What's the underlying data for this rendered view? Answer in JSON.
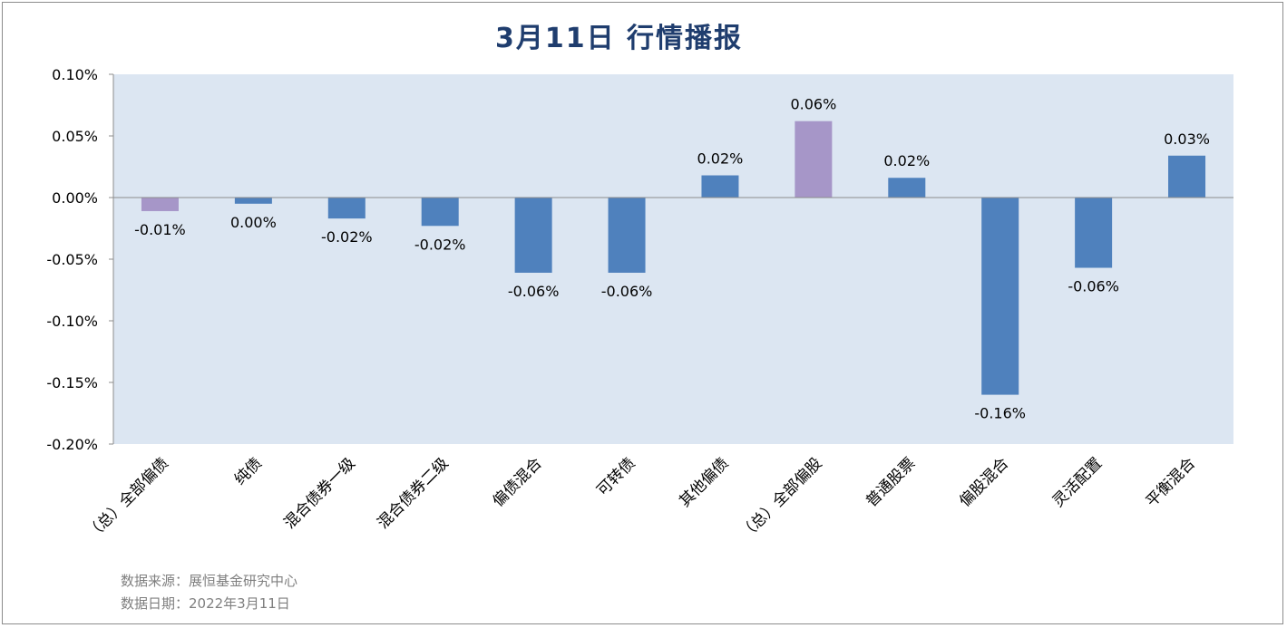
{
  "title": "3月11日  行情播报",
  "notes": {
    "source": "数据来源：展恒基金研究中心",
    "date": "数据日期：2022年3月11日"
  },
  "colors": {
    "plot_bg": "#dce6f2",
    "bar_default": "#4f81bd",
    "bar_total": "#a696c8",
    "title": "#1f3d6e"
  },
  "chart_data": {
    "type": "bar",
    "title": "3月11日  行情播报",
    "xlabel": "",
    "ylabel": "",
    "ylim": [
      -0.2,
      0.1
    ],
    "yticks": [
      0.1,
      0.05,
      0.0,
      -0.05,
      -0.1,
      -0.15,
      -0.2
    ],
    "ytick_labels": [
      "0.10%",
      "0.05%",
      "0.00%",
      "-0.05%",
      "-0.10%",
      "-0.15%",
      "-0.20%"
    ],
    "grid": false,
    "legend": "none",
    "categories": [
      "（总）全部偏债",
      "纯债",
      "混合债券一级",
      "混合债券二级",
      "偏债混合",
      "可转债",
      "其他偏债",
      "（总）全部偏股",
      "普通股票",
      "偏股混合",
      "灵活配置",
      "平衡混合"
    ],
    "values": [
      -0.011,
      -0.005,
      -0.017,
      -0.023,
      -0.061,
      -0.061,
      0.018,
      0.062,
      0.016,
      -0.16,
      -0.057,
      0.034
    ],
    "data_labels": [
      "-0.01%",
      "0.00%",
      "-0.02%",
      "-0.02%",
      "-0.06%",
      "-0.06%",
      "0.02%",
      "0.06%",
      "0.02%",
      "-0.16%",
      "-0.06%",
      "0.03%"
    ],
    "highlight": [
      true,
      false,
      false,
      false,
      false,
      false,
      false,
      true,
      false,
      false,
      false,
      false
    ]
  }
}
